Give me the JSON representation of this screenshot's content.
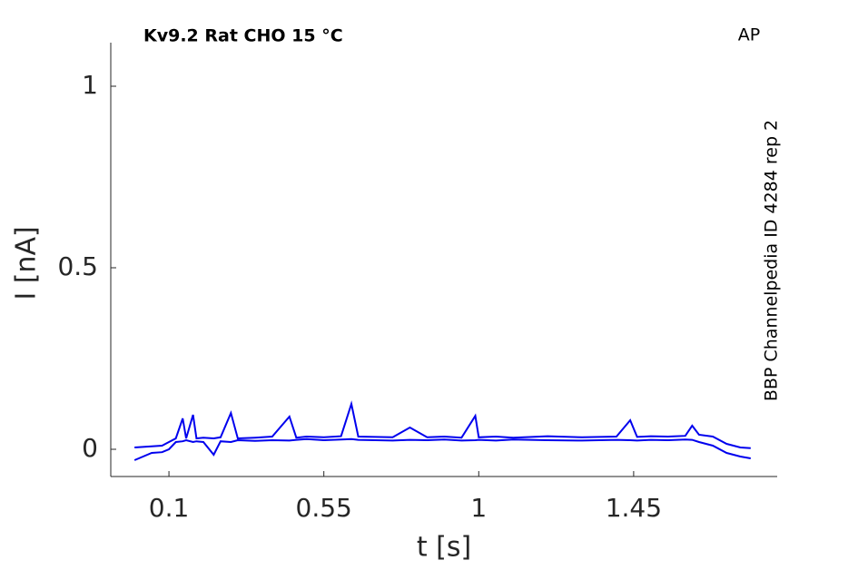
{
  "chart_data": {
    "type": "line",
    "title": "Kv9.2  Rat  CHO  15 °C",
    "annotation": "AP",
    "side_label": "BBP Channelpedia ID 4284 rep 2",
    "xlabel": "t [s]",
    "ylabel": "I [nA]",
    "xlim": [
      -0.069,
      1.867
    ],
    "ylim": [
      -0.075,
      1.12
    ],
    "xticks": [
      0.1,
      0.55,
      1,
      1.45
    ],
    "yticks": [
      0,
      0.5,
      1
    ],
    "x": [
      0.0,
      0.05,
      0.08,
      0.1,
      0.12,
      0.14,
      0.15,
      0.17,
      0.18,
      0.2,
      0.23,
      0.25,
      0.28,
      0.3,
      0.35,
      0.4,
      0.45,
      0.47,
      0.5,
      0.55,
      0.6,
      0.63,
      0.65,
      0.7,
      0.75,
      0.8,
      0.85,
      0.9,
      0.95,
      0.99,
      1.0,
      1.05,
      1.1,
      1.2,
      1.3,
      1.4,
      1.44,
      1.46,
      1.5,
      1.55,
      1.6,
      1.62,
      1.64,
      1.68,
      1.72,
      1.76,
      1.79
    ],
    "series": [
      {
        "color": "#0000ee",
        "values": [
          0.005,
          0.008,
          0.01,
          0.02,
          0.03,
          0.085,
          0.03,
          0.095,
          0.03,
          0.032,
          0.03,
          0.033,
          0.1,
          0.03,
          0.032,
          0.035,
          0.09,
          0.032,
          0.035,
          0.033,
          0.036,
          0.125,
          0.035,
          0.034,
          0.033,
          0.06,
          0.033,
          0.035,
          0.032,
          0.092,
          0.033,
          0.035,
          0.032,
          0.036,
          0.033,
          0.035,
          0.08,
          0.034,
          0.036,
          0.035,
          0.037,
          0.065,
          0.04,
          0.035,
          0.015,
          0.005,
          0.003
        ]
      },
      {
        "color": "#0000ee",
        "values": [
          -0.03,
          -0.01,
          -0.008,
          0.0,
          0.02,
          0.022,
          0.025,
          0.02,
          0.022,
          0.02,
          -0.015,
          0.022,
          0.02,
          0.025,
          0.023,
          0.025,
          0.024,
          0.026,
          0.028,
          0.025,
          0.027,
          0.028,
          0.026,
          0.025,
          0.024,
          0.026,
          0.025,
          0.027,
          0.024,
          0.025,
          0.026,
          0.024,
          0.027,
          0.025,
          0.024,
          0.026,
          0.025,
          0.024,
          0.026,
          0.025,
          0.027,
          0.026,
          0.02,
          0.01,
          -0.01,
          -0.02,
          -0.025
        ]
      }
    ]
  }
}
